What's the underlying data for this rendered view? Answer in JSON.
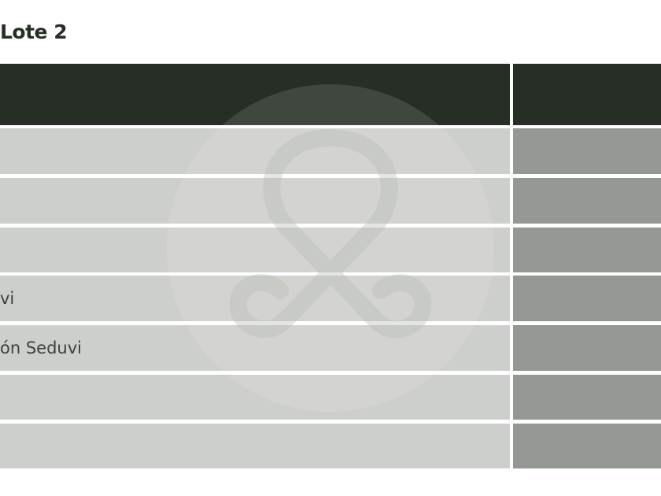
{
  "section_title": "Lote 2",
  "table": {
    "rows": [
      {
        "label": ""
      },
      {
        "label": ""
      },
      {
        "label": ""
      },
      {
        "label": "vi"
      },
      {
        "label": "ón Seduvi"
      },
      {
        "label": ""
      },
      {
        "label": ""
      }
    ]
  },
  "colors": {
    "header": "#262e25",
    "row_left": "#cdcfcc",
    "row_right": "#939893"
  },
  "watermark_icon": "infinity-loop-logo"
}
